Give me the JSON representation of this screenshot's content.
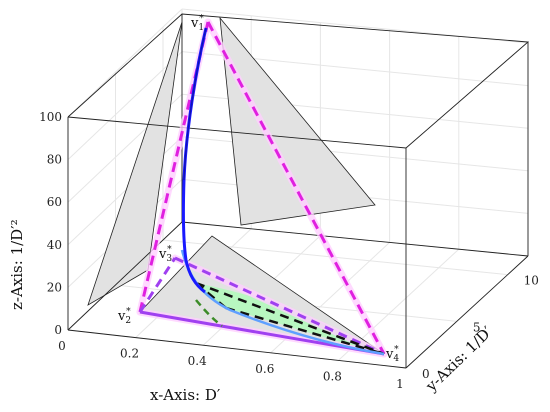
{
  "chart_data": {
    "type": "3d-line",
    "title": "",
    "xlabel": "x-Axis:  D′",
    "ylabel": "y-Axis:  1/D′",
    "zlabel": "z-Axis:  1/D′²",
    "x_ticks": [
      "0",
      "0.2",
      "0.4",
      "0.6",
      "0.8",
      "1"
    ],
    "y_ticks": [
      "0",
      "5",
      "10"
    ],
    "z_ticks": [
      "0",
      "20",
      "40",
      "60",
      "80",
      "100"
    ],
    "xlim": [
      0,
      1
    ],
    "ylim": [
      0,
      12
    ],
    "zlim": [
      0,
      100
    ],
    "grid": true,
    "vertices": [
      {
        "name": "v",
        "sub": "1",
        "sup": "*",
        "x": 0.1,
        "y": 10,
        "z": 100
      },
      {
        "name": "v",
        "sub": "2",
        "sup": "*",
        "x": 0.23,
        "y": 4.3,
        "z": 18.5
      },
      {
        "name": "v",
        "sub": "3",
        "sup": "*",
        "x": 0.33,
        "y": 3,
        "z": 9
      },
      {
        "name": "v",
        "sub": "4",
        "sup": "*",
        "x": 1,
        "y": 1,
        "z": 1
      }
    ],
    "colors": {
      "pyramid_edges": "#e020e0",
      "inner_edges": "#a040f0",
      "base_edges": "#111111",
      "curve": "#1a1aff",
      "curve_light": "#5fa0ff",
      "region_fill": "#b8f7c0",
      "projection_fill": "#e0e0e0",
      "green_curve": "#3c8c28"
    }
  }
}
